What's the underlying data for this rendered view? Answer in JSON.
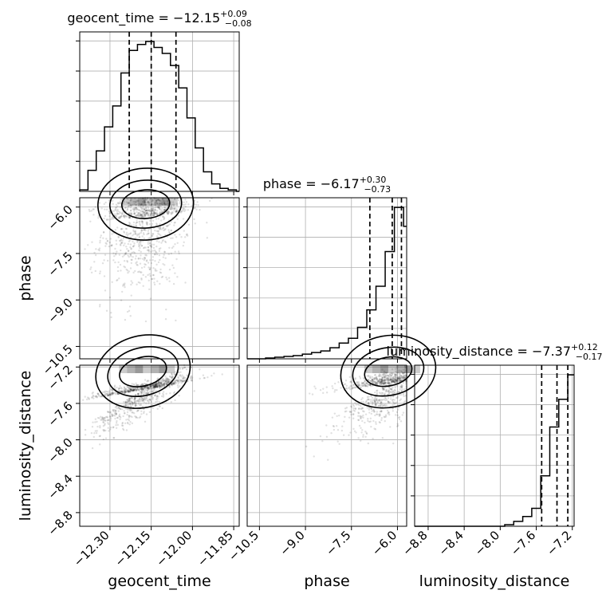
{
  "chart_data": {
    "type": "corner",
    "parameters": [
      "geocent_time",
      "phase",
      "luminosity_distance"
    ],
    "diagonal": [
      {
        "parameter": "geocent_time",
        "title_prefix": "geocent_time = ",
        "median": "−12.15",
        "plus": "+0.09",
        "minus": "−0.08",
        "range": [
          -12.41,
          -11.83
        ],
        "quantiles": [
          -12.23,
          -12.15,
          -12.06
        ],
        "bins": [
          -12.41,
          -12.38,
          -12.35,
          -12.32,
          -12.29,
          -12.26,
          -12.23,
          -12.2,
          -12.17,
          -12.14,
          -12.11,
          -12.08,
          -12.05,
          -12.02,
          -11.99,
          -11.96,
          -11.93,
          -11.9,
          -11.87,
          -11.84
        ],
        "counts": [
          0.01,
          0.14,
          0.27,
          0.43,
          0.57,
          0.79,
          0.94,
          0.98,
          1.0,
          0.96,
          0.92,
          0.84,
          0.69,
          0.49,
          0.29,
          0.13,
          0.05,
          0.02,
          0.01,
          0.0
        ]
      },
      {
        "parameter": "phase",
        "title_prefix": "phase = ",
        "median": "−6.17",
        "plus": "+0.30",
        "minus": "−0.73",
        "range": [
          -10.9,
          -5.7
        ],
        "quantiles": [
          -6.9,
          -6.17,
          -5.87
        ],
        "bins": [
          -10.9,
          -10.6,
          -10.3,
          -10.0,
          -9.7,
          -9.4,
          -9.1,
          -8.8,
          -8.5,
          -8.2,
          -7.9,
          -7.6,
          -7.3,
          -7.0,
          -6.7,
          -6.4,
          -6.1,
          -5.8
        ],
        "counts": [
          0.0,
          0.0,
          0.005,
          0.01,
          0.015,
          0.02,
          0.03,
          0.04,
          0.05,
          0.07,
          0.1,
          0.13,
          0.2,
          0.31,
          0.46,
          0.68,
          0.96,
          0.84
        ]
      },
      {
        "parameter": "luminosity_distance",
        "title_prefix": "luminosity_distance = ",
        "median": "−7.37",
        "plus": "+0.12",
        "minus": "−0.17",
        "range": [
          -8.95,
          -7.18
        ],
        "quantiles": [
          -7.54,
          -7.37,
          -7.25
        ],
        "bins": [
          -8.95,
          -8.85,
          -8.75,
          -8.65,
          -8.55,
          -8.45,
          -8.35,
          -8.25,
          -8.15,
          -8.05,
          -7.95,
          -7.85,
          -7.75,
          -7.65,
          -7.55,
          -7.45,
          -7.35,
          -7.25
        ],
        "counts": [
          0.0,
          0.0,
          0.0,
          0.0,
          0.0,
          0.0,
          0.0,
          0.0,
          0.0,
          0.0,
          0.01,
          0.03,
          0.06,
          0.11,
          0.31,
          0.61,
          0.78,
          0.93
        ]
      }
    ],
    "ticks": {
      "geocent_time": [
        "−12.30",
        "−12.15",
        "−12.00",
        "−11.85"
      ],
      "geocent_time_values": [
        -12.3,
        -12.15,
        -12.0,
        -11.85
      ],
      "phase": [
        "−10.5",
        "−9.0",
        "−7.5",
        "−6.0"
      ],
      "phase_values": [
        -10.5,
        -9.0,
        -7.5,
        -6.0
      ],
      "luminosity_distance": [
        "−8.8",
        "−8.4",
        "−8.0",
        "−7.6",
        "−7.2"
      ],
      "luminosity_distance_values": [
        -8.8,
        -8.4,
        -8.0,
        -7.6,
        -7.2
      ]
    },
    "xlabels": [
      "geocent_time",
      "phase",
      "luminosity_distance"
    ],
    "ylabels": [
      "phase",
      "luminosity_distance"
    ],
    "grid": true
  }
}
